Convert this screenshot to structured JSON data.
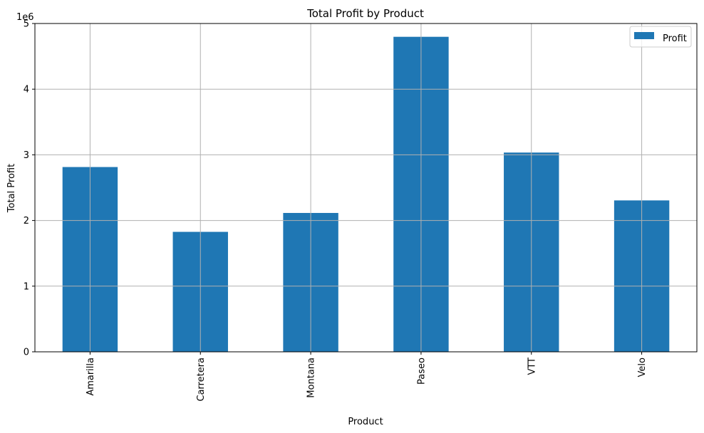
{
  "chart_data": {
    "type": "bar",
    "title": "Total Profit by Product",
    "xlabel": "Product",
    "ylabel": "Total Profit",
    "offset_label": "1e6",
    "categories": [
      "Amarilla",
      "Carretera",
      "Montana",
      "Paseo",
      "VTT",
      "Velo"
    ],
    "series": [
      {
        "name": "Profit",
        "values": [
          2814104.07,
          1826922.76,
          2114754.92,
          4797437.96,
          3034608.02,
          2305992.54
        ]
      }
    ],
    "ylim": [
      0,
      5000000
    ],
    "yticks": [
      0,
      1000000,
      2000000,
      3000000,
      4000000,
      5000000
    ],
    "ytick_labels": [
      "0",
      "1",
      "2",
      "3",
      "4",
      "5"
    ],
    "grid": true,
    "legend_position": "top-right",
    "bar_color": "#1f77b4",
    "grid_color": "#b0b0b0"
  }
}
